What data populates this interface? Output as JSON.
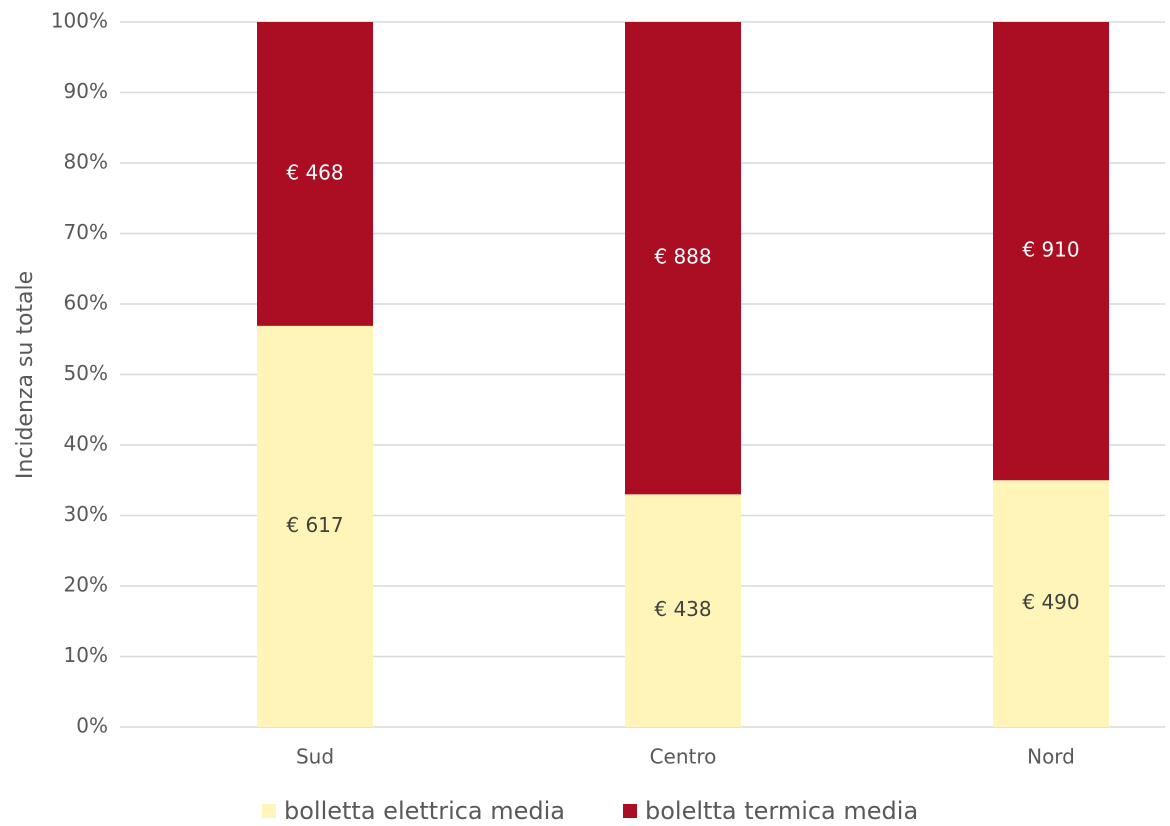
{
  "chart_data": {
    "type": "bar",
    "stacked": true,
    "y_label": "Incidenza su totale",
    "categories": [
      "Sud",
      "Centro",
      "Nord"
    ],
    "series": [
      {
        "name": "bolletta elettrica media",
        "color": "#fff5b8",
        "values": [
          56.9,
          33.0,
          35.0
        ],
        "data_labels": [
          "€ 617",
          "€ 438",
          "€ 490"
        ]
      },
      {
        "name": "boleltta termica media",
        "color": "#ab0e22",
        "values": [
          43.1,
          67.0,
          65.0
        ],
        "data_labels": [
          "€ 468",
          "€ 888",
          "€ 910"
        ]
      }
    ],
    "ylim": [
      0,
      100
    ],
    "yticks": [
      {
        "value": 0,
        "label": "0%"
      },
      {
        "value": 10,
        "label": "10%"
      },
      {
        "value": 20,
        "label": "20%"
      },
      {
        "value": 30,
        "label": "30%"
      },
      {
        "value": 40,
        "label": "40%"
      },
      {
        "value": 50,
        "label": "50%"
      },
      {
        "value": 60,
        "label": "60%"
      },
      {
        "value": 70,
        "label": "70%"
      },
      {
        "value": 80,
        "label": "80%"
      },
      {
        "value": 90,
        "label": "90%"
      },
      {
        "value": 100,
        "label": "100%"
      }
    ],
    "grid": true,
    "legend": "bottom"
  }
}
